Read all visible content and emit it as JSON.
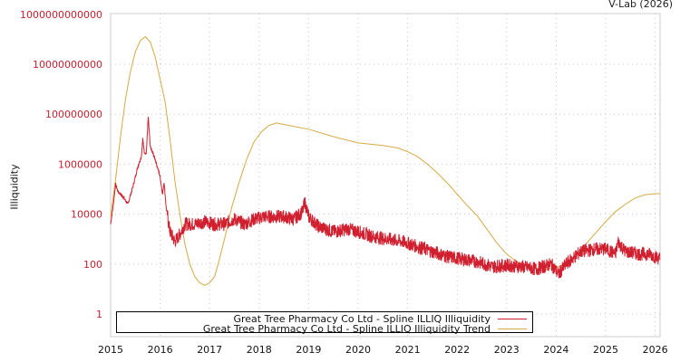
{
  "credit": "V-Lab (2026)",
  "legend": [
    {
      "label": "Great Tree Pharmacy Co Ltd - Spline ILLIQ Illiquidity",
      "color": "#d0202f"
    },
    {
      "label": "Great Tree Pharmacy Co Ltd - Spline ILLIQ Illiquidity Trend",
      "color": "#d4aa44"
    }
  ],
  "chart_data": {
    "type": "line",
    "title": "",
    "xlabel": "",
    "ylabel": "Illiquidity",
    "yscale": "log",
    "ylim": [
      0.3,
      1000000000000
    ],
    "xlim": [
      2015,
      2026.1
    ],
    "x_ticks": [
      "2015",
      "2016",
      "2017",
      "2018",
      "2019",
      "2020",
      "2021",
      "2022",
      "2023",
      "2024",
      "2025",
      "2026"
    ],
    "y_ticks": [
      "1",
      "100",
      "10000",
      "1000000",
      "100000000",
      "10000000000",
      "1000000000000"
    ],
    "grid": true,
    "legend_position": "bottom",
    "series": [
      {
        "name": "Great Tree Pharmacy Co Ltd - Spline ILLIQ Illiquidity",
        "color": "#d0202f",
        "note": "points are [year, log10(value)]",
        "points": [
          [
            2015.0,
            3.6
          ],
          [
            2015.05,
            4.3
          ],
          [
            2015.1,
            5.2
          ],
          [
            2015.15,
            4.9
          ],
          [
            2015.25,
            4.7
          ],
          [
            2015.35,
            4.4
          ],
          [
            2015.45,
            5.1
          ],
          [
            2015.55,
            5.9
          ],
          [
            2015.62,
            6.3
          ],
          [
            2015.65,
            7.0
          ],
          [
            2015.68,
            6.5
          ],
          [
            2015.72,
            6.4
          ],
          [
            2015.76,
            7.9
          ],
          [
            2015.8,
            6.7
          ],
          [
            2015.9,
            6.2
          ],
          [
            2016.0,
            5.5
          ],
          [
            2016.05,
            4.8
          ],
          [
            2016.08,
            5.3
          ],
          [
            2016.12,
            4.3
          ],
          [
            2016.2,
            3.3
          ],
          [
            2016.3,
            2.9
          ],
          [
            2016.4,
            3.2
          ],
          [
            2016.5,
            3.6
          ],
          [
            2016.7,
            3.6
          ],
          [
            2016.9,
            3.7
          ],
          [
            2017.1,
            3.6
          ],
          [
            2017.3,
            3.6
          ],
          [
            2017.5,
            3.8
          ],
          [
            2017.7,
            3.6
          ],
          [
            2017.9,
            3.8
          ],
          [
            2018.1,
            3.9
          ],
          [
            2018.3,
            3.9
          ],
          [
            2018.5,
            3.9
          ],
          [
            2018.7,
            3.8
          ],
          [
            2018.88,
            4.1
          ],
          [
            2018.92,
            4.5
          ],
          [
            2019.0,
            3.9
          ],
          [
            2019.2,
            3.5
          ],
          [
            2019.5,
            3.3
          ],
          [
            2019.8,
            3.4
          ],
          [
            2020.0,
            3.3
          ],
          [
            2020.3,
            3.1
          ],
          [
            2020.6,
            3.0
          ],
          [
            2020.9,
            2.9
          ],
          [
            2021.2,
            2.7
          ],
          [
            2021.5,
            2.5
          ],
          [
            2021.8,
            2.3
          ],
          [
            2022.1,
            2.2
          ],
          [
            2022.4,
            2.1
          ],
          [
            2022.7,
            1.9
          ],
          [
            2023.0,
            1.95
          ],
          [
            2023.3,
            1.9
          ],
          [
            2023.6,
            1.8
          ],
          [
            2023.9,
            2.0
          ],
          [
            2024.05,
            1.6
          ],
          [
            2024.2,
            2.0
          ],
          [
            2024.5,
            2.5
          ],
          [
            2024.8,
            2.6
          ],
          [
            2025.0,
            2.6
          ],
          [
            2025.2,
            2.4
          ],
          [
            2025.25,
            2.9
          ],
          [
            2025.4,
            2.5
          ],
          [
            2025.7,
            2.4
          ],
          [
            2025.9,
            2.4
          ],
          [
            2026.1,
            2.2
          ]
        ]
      },
      {
        "name": "Great Tree Pharmacy Co Ltd - Spline ILLIQ Illiquidity Trend",
        "color": "#d4aa44",
        "note": "points are [year, log10(value)]",
        "points": [
          [
            2015.0,
            3.9
          ],
          [
            2015.1,
            5.4
          ],
          [
            2015.2,
            7.1
          ],
          [
            2015.3,
            8.6
          ],
          [
            2015.4,
            9.7
          ],
          [
            2015.5,
            10.5
          ],
          [
            2015.6,
            10.95
          ],
          [
            2015.7,
            11.1
          ],
          [
            2015.8,
            10.9
          ],
          [
            2015.9,
            10.3
          ],
          [
            2016.0,
            9.4
          ],
          [
            2016.1,
            8.5
          ],
          [
            2016.2,
            7.0
          ],
          [
            2016.3,
            5.3
          ],
          [
            2016.4,
            4.0
          ],
          [
            2016.5,
            2.8
          ],
          [
            2016.6,
            2.0
          ],
          [
            2016.7,
            1.5
          ],
          [
            2016.8,
            1.25
          ],
          [
            2016.9,
            1.15
          ],
          [
            2017.0,
            1.25
          ],
          [
            2017.1,
            1.5
          ],
          [
            2017.2,
            2.2
          ],
          [
            2017.3,
            3.0
          ],
          [
            2017.45,
            4.3
          ],
          [
            2017.6,
            5.3
          ],
          [
            2017.75,
            6.2
          ],
          [
            2017.9,
            6.9
          ],
          [
            2018.05,
            7.3
          ],
          [
            2018.2,
            7.55
          ],
          [
            2018.35,
            7.65
          ],
          [
            2018.6,
            7.55
          ],
          [
            2019.0,
            7.4
          ],
          [
            2019.5,
            7.1
          ],
          [
            2020.0,
            6.85
          ],
          [
            2020.5,
            6.75
          ],
          [
            2020.8,
            6.65
          ],
          [
            2021.0,
            6.5
          ],
          [
            2021.2,
            6.3
          ],
          [
            2021.4,
            6.0
          ],
          [
            2021.6,
            5.65
          ],
          [
            2021.8,
            5.25
          ],
          [
            2022.0,
            4.8
          ],
          [
            2022.2,
            4.35
          ],
          [
            2022.4,
            3.95
          ],
          [
            2022.6,
            3.4
          ],
          [
            2022.8,
            2.85
          ],
          [
            2023.0,
            2.4
          ],
          [
            2023.2,
            2.1
          ],
          [
            2023.4,
            1.92
          ],
          [
            2023.6,
            1.82
          ],
          [
            2023.8,
            1.8
          ],
          [
            2024.0,
            1.85
          ],
          [
            2024.2,
            2.05
          ],
          [
            2024.4,
            2.35
          ],
          [
            2024.6,
            2.8
          ],
          [
            2024.8,
            3.25
          ],
          [
            2025.0,
            3.7
          ],
          [
            2025.2,
            4.1
          ],
          [
            2025.4,
            4.4
          ],
          [
            2025.6,
            4.65
          ],
          [
            2025.8,
            4.78
          ],
          [
            2026.0,
            4.82
          ],
          [
            2026.1,
            4.82
          ]
        ]
      }
    ]
  }
}
